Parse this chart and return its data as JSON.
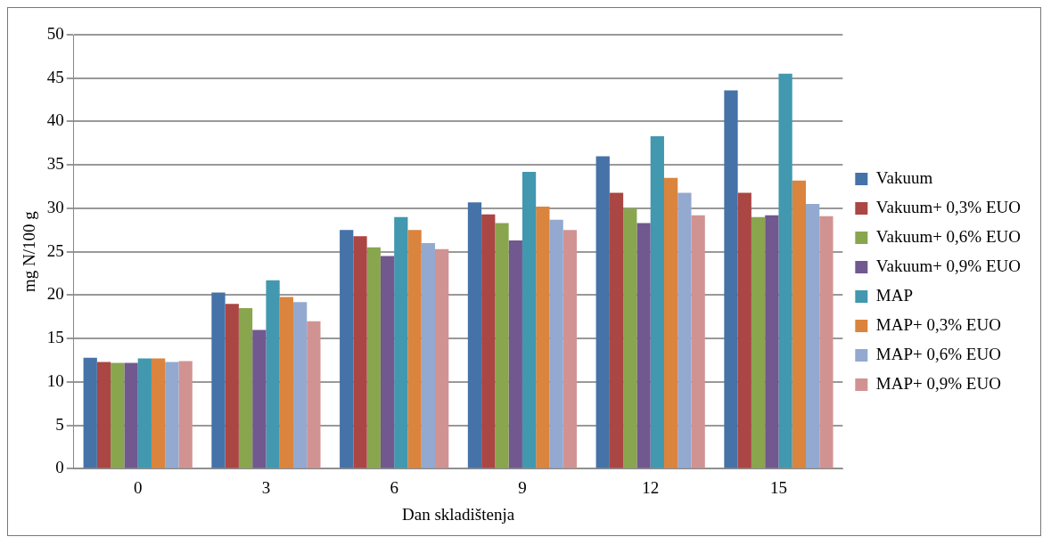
{
  "chart_data": {
    "type": "bar",
    "xlabel": "Dan skladištenja",
    "ylabel": "mg N/100 g",
    "categories": [
      "0",
      "3",
      "6",
      "9",
      "12",
      "15"
    ],
    "series": [
      {
        "name": "Vakuum",
        "color": "#4572a7",
        "values": [
          12.8,
          20.3,
          27.5,
          30.7,
          36,
          43.6
        ]
      },
      {
        "name": "Vakuum+ 0,3% EUO",
        "color": "#aa4643",
        "values": [
          12.3,
          19,
          26.8,
          29.3,
          31.8,
          31.8
        ]
      },
      {
        "name": "Vakuum+ 0,6% EUO",
        "color": "#89a54e",
        "values": [
          12.2,
          18.5,
          25.5,
          28.3,
          30,
          29
        ]
      },
      {
        "name": "Vakuum+ 0,9% EUO",
        "color": "#71588f",
        "values": [
          12.2,
          16,
          24.5,
          26.3,
          28.3,
          29.2
        ]
      },
      {
        "name": "MAP",
        "color": "#4198af",
        "values": [
          12.7,
          21.7,
          29,
          34.2,
          38.3,
          45.5
        ]
      },
      {
        "name": "MAP+ 0,3% EUO",
        "color": "#db843d",
        "values": [
          12.7,
          19.8,
          27.5,
          30.2,
          33.5,
          33.2
        ]
      },
      {
        "name": "MAP+ 0,6% EUO",
        "color": "#93a9cf",
        "values": [
          12.3,
          19.2,
          26,
          28.7,
          31.8,
          30.5
        ]
      },
      {
        "name": "MAP+ 0,9% EUO",
        "color": "#d19392",
        "values": [
          12.4,
          17,
          25.3,
          27.5,
          29.2,
          29.1
        ]
      }
    ],
    "ylim": [
      0,
      50
    ],
    "yticks": [
      0,
      5,
      10,
      15,
      20,
      25,
      30,
      35,
      40,
      45,
      50
    ],
    "grid": "y",
    "legend": "right"
  }
}
